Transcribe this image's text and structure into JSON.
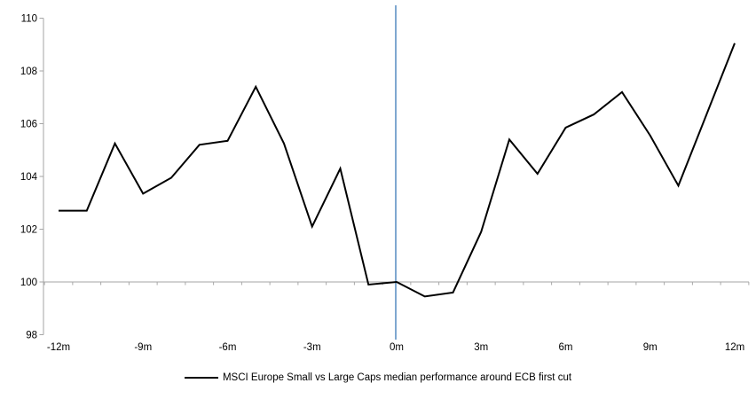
{
  "page": {
    "background": "#ffffff"
  },
  "chart_data": {
    "type": "line",
    "title": "",
    "xlabel": "",
    "ylabel": "",
    "categories": [
      "-12m",
      "-11m",
      "-10m",
      "-9m",
      "-8m",
      "-7m",
      "-6m",
      "-5m",
      "-4m",
      "-3m",
      "-2m",
      "-1m",
      "0m",
      "1m",
      "2m",
      "3m",
      "4m",
      "5m",
      "6m",
      "7m",
      "8m",
      "9m",
      "10m",
      "11m",
      "12m"
    ],
    "series": [
      {
        "name": "MSCI Europe Small vs Large Caps median performance around ECB first cut",
        "color": "#000000",
        "values": [
          102.7,
          102.7,
          105.25,
          103.35,
          103.95,
          105.2,
          105.35,
          107.4,
          105.25,
          102.1,
          104.3,
          99.9,
          100.0,
          99.45,
          99.6,
          101.9,
          105.4,
          104.1,
          105.85,
          106.35,
          107.2,
          105.55,
          103.65,
          106.35,
          109.05
        ]
      }
    ],
    "ylim": [
      98,
      110
    ],
    "yticks": [
      "98",
      "100",
      "102",
      "104",
      "106",
      "108",
      "110"
    ],
    "ytick_values": [
      98,
      100,
      102,
      104,
      106,
      108,
      110
    ],
    "xtick_labels_shown": [
      "-12m",
      "-9m",
      "-6m",
      "-3m",
      "0m",
      "3m",
      "6m",
      "9m",
      "12m"
    ],
    "xtick_label_months": [
      -12,
      -9,
      -6,
      -3,
      0,
      3,
      6,
      9,
      12
    ],
    "category_axis_cross_value": 100,
    "grid": "off",
    "axis_color": "#A6A6A6",
    "text_color": "#000000",
    "event_line": {
      "at_label": "0m",
      "color": "#7FA8D0"
    },
    "legend_position": "bottom"
  },
  "legend": {
    "label": "MSCI Europe Small vs Large Caps median performance around ECB first cut"
  }
}
